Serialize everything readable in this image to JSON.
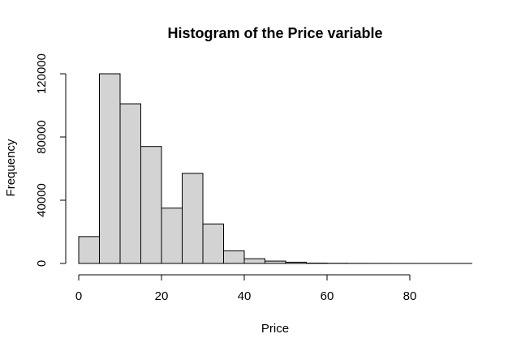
{
  "chart_data": {
    "type": "bar",
    "title": "Histogram of the Price variable",
    "xlabel": "Price",
    "ylabel": "Frequency",
    "bin_width": 5,
    "bins": [
      {
        "x0": 0,
        "x1": 5,
        "count": 17000
      },
      {
        "x0": 5,
        "x1": 10,
        "count": 120000
      },
      {
        "x0": 10,
        "x1": 15,
        "count": 101000
      },
      {
        "x0": 15,
        "x1": 20,
        "count": 74000
      },
      {
        "x0": 20,
        "x1": 25,
        "count": 35000
      },
      {
        "x0": 25,
        "x1": 30,
        "count": 57000
      },
      {
        "x0": 30,
        "x1": 35,
        "count": 25000
      },
      {
        "x0": 35,
        "x1": 40,
        "count": 8000
      },
      {
        "x0": 40,
        "x1": 45,
        "count": 3000
      },
      {
        "x0": 45,
        "x1": 50,
        "count": 1500
      },
      {
        "x0": 50,
        "x1": 55,
        "count": 800
      },
      {
        "x0": 55,
        "x1": 60,
        "count": 200
      },
      {
        "x0": 60,
        "x1": 65,
        "count": 100
      },
      {
        "x0": 65,
        "x1": 70,
        "count": 50
      },
      {
        "x0": 70,
        "x1": 75,
        "count": 30
      },
      {
        "x0": 75,
        "x1": 80,
        "count": 20
      },
      {
        "x0": 80,
        "x1": 85,
        "count": 10
      },
      {
        "x0": 85,
        "x1": 90,
        "count": 5
      },
      {
        "x0": 90,
        "x1": 95,
        "count": 5
      }
    ],
    "xlim": [
      0,
      95
    ],
    "ylim": [
      0,
      120000
    ],
    "x_ticks": [
      0,
      20,
      40,
      60,
      80
    ],
    "y_ticks": [
      0,
      40000,
      80000,
      120000
    ],
    "x_tick_labels": [
      "0",
      "20",
      "40",
      "60",
      "80"
    ],
    "y_tick_labels": [
      "0",
      "40000",
      "80000",
      "120000"
    ],
    "bar_fill": "#d3d3d3",
    "bar_stroke": "#000000",
    "grid": false,
    "legend": "none"
  }
}
